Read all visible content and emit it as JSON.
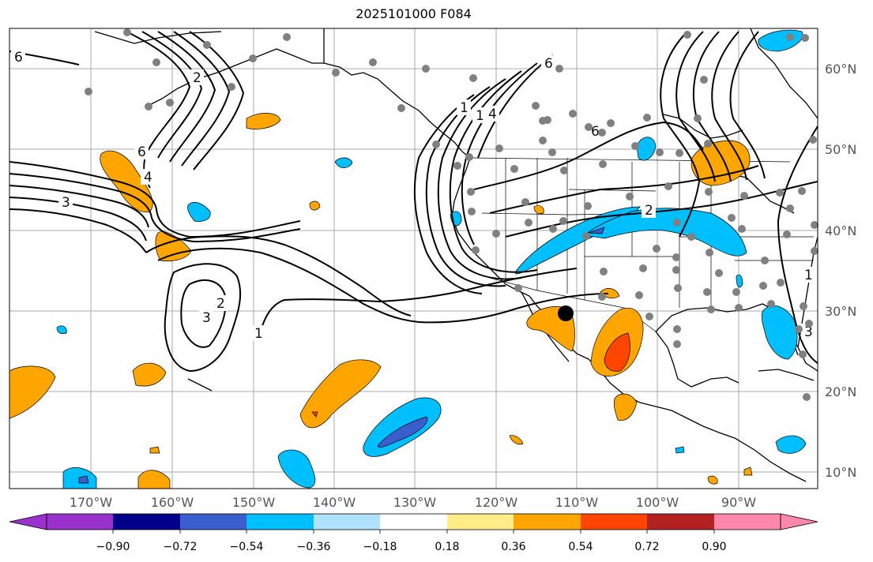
{
  "title": "2025101000 F084",
  "lon_labels": [
    "170°W",
    "160°W",
    "150°W",
    "140°W",
    "130°W",
    "120°W",
    "110°W",
    "100°W",
    "90°W"
  ],
  "lat_labels": [
    "60°N",
    "50°N",
    "40°N",
    "30°N",
    "20°N",
    "10°N"
  ],
  "colorbar": {
    "ticks": [
      "−0.90",
      "−0.72",
      "−0.54",
      "−0.36",
      "−0.18",
      "0.18",
      "0.36",
      "0.54",
      "0.72",
      "0.90"
    ],
    "colors": [
      "#9932cc",
      "#00008b",
      "#3a5fcd",
      "#00bfff",
      "#b0e2ff",
      "#ffffff",
      "#ffee88",
      "#ffa500",
      "#ff4500",
      "#b22222",
      "#ff88aa"
    ]
  },
  "contour_labels": [
    "6",
    "3",
    "6",
    "4",
    "2",
    "3",
    "1",
    "1",
    "1",
    "4",
    "6",
    "2",
    "6",
    "2",
    "1",
    "3"
  ],
  "colors": {
    "positive_fill": "#ffa500",
    "strong_positive_fill": "#ff4500",
    "negative_fill": "#00bfff",
    "strong_negative_fill": "#3a5fcd",
    "station_dot": "#808080",
    "marker": "#000000"
  }
}
